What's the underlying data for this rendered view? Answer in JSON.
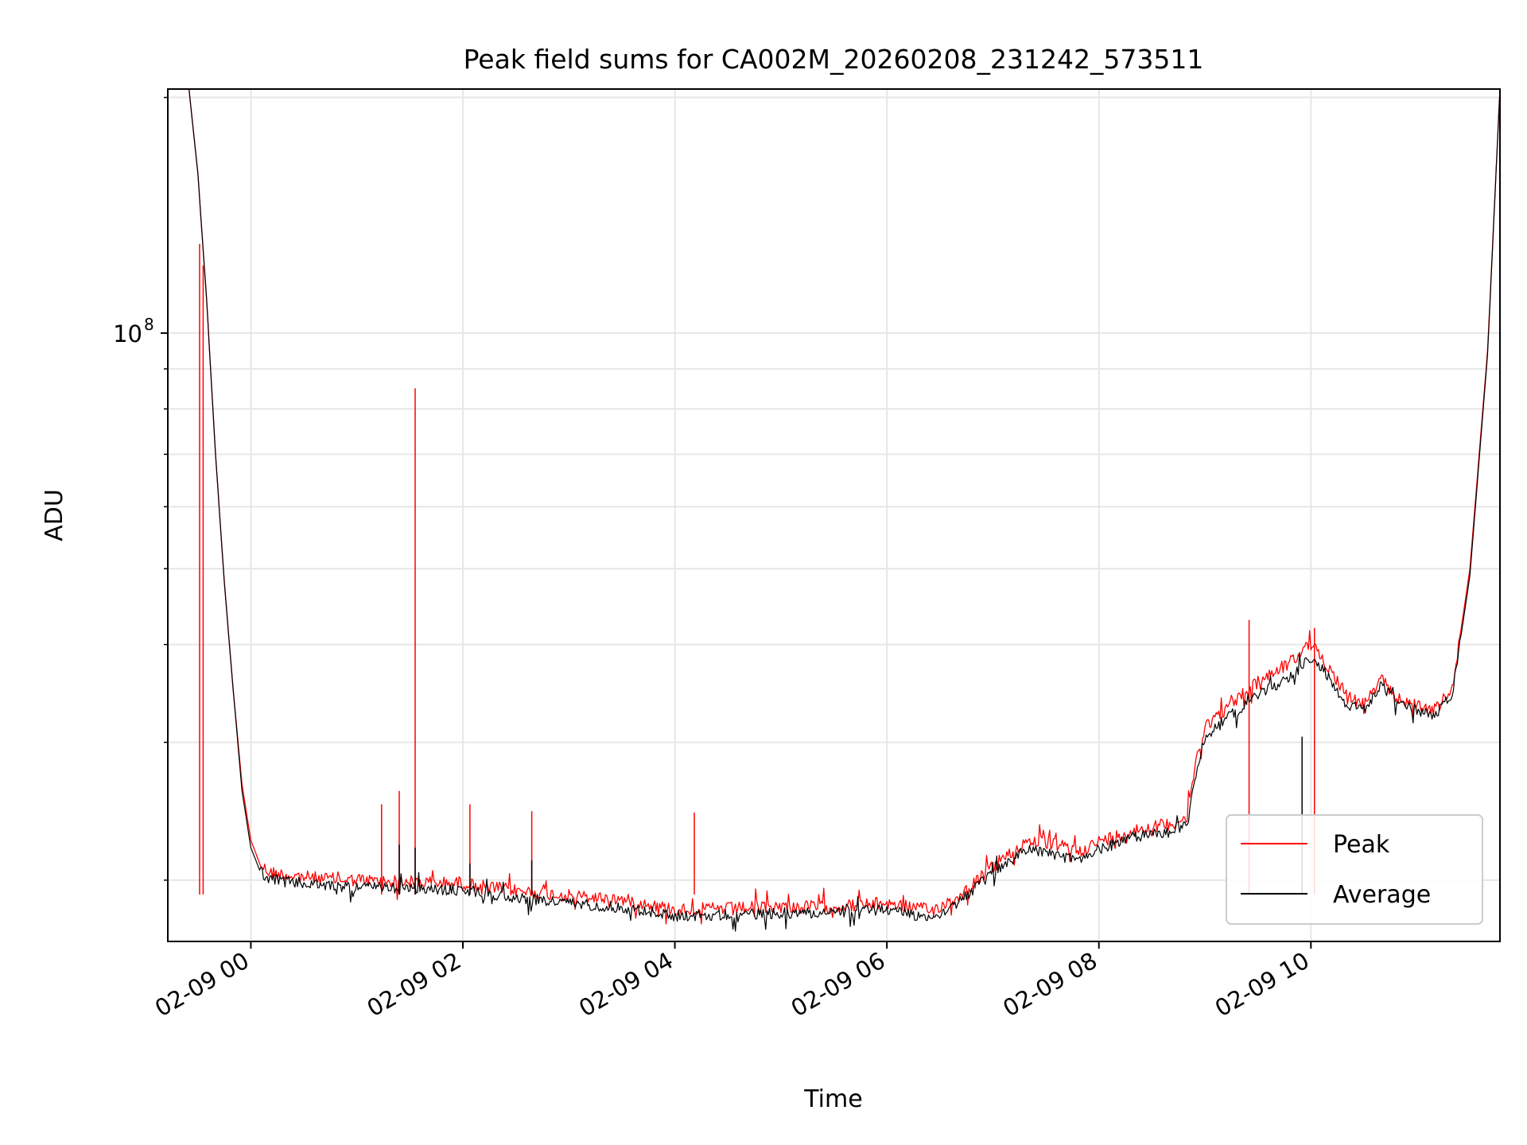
{
  "chart_data": {
    "type": "line",
    "title": "Peak field sums for CA002M_20260208_231242_573511",
    "xlabel": "Time",
    "ylabel": "ADU",
    "yscale": "log",
    "grid": true,
    "legend_position": "lower-right",
    "x_range": [
      "2026-02-08 23:13",
      "2026-02-09 11:47"
    ],
    "y_range": [
      16700000,
      205000000
    ],
    "x_ticks": [
      {
        "label": "02-09 00",
        "time": "2026-02-09 00:00"
      },
      {
        "label": "02-09 02",
        "time": "2026-02-09 02:00"
      },
      {
        "label": "02-09 04",
        "time": "2026-02-09 04:00"
      },
      {
        "label": "02-09 06",
        "time": "2026-02-09 06:00"
      },
      {
        "label": "02-09 08",
        "time": "2026-02-09 08:00"
      },
      {
        "label": "02-09 10",
        "time": "2026-02-09 10:00"
      }
    ],
    "y_major_ticks": [
      {
        "label_base": "10",
        "label_exp": "8",
        "value": 100000000
      }
    ],
    "y_minor_ticks": [
      20000000,
      30000000,
      40000000,
      50000000,
      60000000,
      70000000,
      80000000,
      90000000,
      200000000
    ],
    "series": [
      {
        "name": "Peak",
        "color": "#ff0000",
        "points": [
          [
            "2026-02-08 23:25",
            205000000
          ],
          [
            "2026-02-08 23:30",
            160000000
          ],
          [
            "2026-02-08 23:35",
            110000000
          ],
          [
            "2026-02-08 23:40",
            70000000
          ],
          [
            "2026-02-08 23:45",
            48000000
          ],
          [
            "2026-02-08 23:50",
            35000000
          ],
          [
            "2026-02-08 23:55",
            26500000
          ],
          [
            "2026-02-09 00:00",
            22500000
          ],
          [
            "2026-02-09 00:05",
            21000000
          ],
          [
            "2026-02-09 00:10",
            20500000
          ],
          [
            "2026-02-09 00:20",
            20300000
          ],
          [
            "2026-02-09 00:40",
            20100000
          ],
          [
            "2026-02-09 01:00",
            20000000
          ],
          [
            "2026-02-09 01:30",
            19900000
          ],
          [
            "2026-02-09 02:00",
            19800000
          ],
          [
            "2026-02-09 02:30",
            19400000
          ],
          [
            "2026-02-09 03:00",
            19100000
          ],
          [
            "2026-02-09 03:30",
            18900000
          ],
          [
            "2026-02-09 04:00",
            18350000
          ],
          [
            "2026-02-09 04:30",
            18400000
          ],
          [
            "2026-02-09 05:00",
            18500000
          ],
          [
            "2026-02-09 05:30",
            18500000
          ],
          [
            "2026-02-09 06:00",
            18700000
          ],
          [
            "2026-02-09 06:25",
            18300000
          ],
          [
            "2026-02-09 06:40",
            19000000
          ],
          [
            "2026-02-09 07:00",
            20800000
          ],
          [
            "2026-02-09 07:20",
            22500000
          ],
          [
            "2026-02-09 07:35",
            22200000
          ],
          [
            "2026-02-09 07:50",
            21800000
          ],
          [
            "2026-02-09 08:00",
            22400000
          ],
          [
            "2026-02-09 08:20",
            23200000
          ],
          [
            "2026-02-09 08:40",
            23600000
          ],
          [
            "2026-02-09 08:50",
            24000000
          ],
          [
            "2026-02-09 08:55",
            28500000
          ],
          [
            "2026-02-09 09:00",
            31500000
          ],
          [
            "2026-02-09 09:15",
            33500000
          ],
          [
            "2026-02-09 09:30",
            36000000
          ],
          [
            "2026-02-09 09:45",
            37500000
          ],
          [
            "2026-02-09 10:00",
            40000000
          ],
          [
            "2026-02-09 10:10",
            37500000
          ],
          [
            "2026-02-09 10:20",
            34500000
          ],
          [
            "2026-02-09 10:30",
            33500000
          ],
          [
            "2026-02-09 10:40",
            36000000
          ],
          [
            "2026-02-09 10:50",
            34000000
          ],
          [
            "2026-02-09 11:00",
            33500000
          ],
          [
            "2026-02-09 11:10",
            33000000
          ],
          [
            "2026-02-09 11:20",
            35000000
          ],
          [
            "2026-02-09 11:30",
            50000000
          ],
          [
            "2026-02-09 11:40",
            95000000
          ],
          [
            "2026-02-09 11:47",
            205000000
          ]
        ],
        "spikes": [
          [
            "2026-02-08 23:31",
            130000000
          ],
          [
            "2026-02-08 23:33",
            122000000
          ],
          [
            "2026-02-09 01:14",
            25000000
          ],
          [
            "2026-02-09 01:24",
            26000000
          ],
          [
            "2026-02-09 01:33",
            85000000
          ],
          [
            "2026-02-09 02:04",
            25000000
          ],
          [
            "2026-02-09 02:39",
            24500000
          ],
          [
            "2026-02-09 04:11",
            24400000
          ],
          [
            "2026-02-09 09:25",
            43000000
          ],
          [
            "2026-02-09 10:02",
            42000000
          ]
        ]
      },
      {
        "name": "Average",
        "color": "#000000",
        "points": [
          [
            "2026-02-08 23:25",
            205000000
          ],
          [
            "2026-02-08 23:30",
            160000000
          ],
          [
            "2026-02-08 23:35",
            110000000
          ],
          [
            "2026-02-08 23:40",
            70000000
          ],
          [
            "2026-02-08 23:45",
            48000000
          ],
          [
            "2026-02-08 23:50",
            35000000
          ],
          [
            "2026-02-08 23:55",
            26000000
          ],
          [
            "2026-02-09 00:00",
            22000000
          ],
          [
            "2026-02-09 00:05",
            20600000
          ],
          [
            "2026-02-09 00:10",
            20100000
          ],
          [
            "2026-02-09 00:20",
            19900000
          ],
          [
            "2026-02-09 00:40",
            19700000
          ],
          [
            "2026-02-09 01:00",
            19600000
          ],
          [
            "2026-02-09 01:30",
            19500000
          ],
          [
            "2026-02-09 02:00",
            19400000
          ],
          [
            "2026-02-09 02:30",
            19000000
          ],
          [
            "2026-02-09 03:00",
            18700000
          ],
          [
            "2026-02-09 03:30",
            18450000
          ],
          [
            "2026-02-09 04:00",
            18000000
          ],
          [
            "2026-02-09 04:30",
            18050000
          ],
          [
            "2026-02-09 05:00",
            18150000
          ],
          [
            "2026-02-09 05:30",
            18200000
          ],
          [
            "2026-02-09 06:00",
            18350000
          ],
          [
            "2026-02-09 06:25",
            17900000
          ],
          [
            "2026-02-09 06:40",
            18700000
          ],
          [
            "2026-02-09 07:00",
            20400000
          ],
          [
            "2026-02-09 07:20",
            22000000
          ],
          [
            "2026-02-09 07:35",
            21500000
          ],
          [
            "2026-02-09 07:50",
            21200000
          ],
          [
            "2026-02-09 08:00",
            21900000
          ],
          [
            "2026-02-09 08:20",
            22700000
          ],
          [
            "2026-02-09 08:40",
            23100000
          ],
          [
            "2026-02-09 08:50",
            23500000
          ],
          [
            "2026-02-09 08:55",
            27500000
          ],
          [
            "2026-02-09 09:00",
            30500000
          ],
          [
            "2026-02-09 09:15",
            32500000
          ],
          [
            "2026-02-09 09:30",
            34500000
          ],
          [
            "2026-02-09 09:45",
            36000000
          ],
          [
            "2026-02-09 10:00",
            38500000
          ],
          [
            "2026-02-09 10:10",
            36500000
          ],
          [
            "2026-02-09 10:20",
            33500000
          ],
          [
            "2026-02-09 10:30",
            33000000
          ],
          [
            "2026-02-09 10:40",
            35500000
          ],
          [
            "2026-02-09 10:50",
            33500000
          ],
          [
            "2026-02-09 11:00",
            33000000
          ],
          [
            "2026-02-09 11:10",
            32500000
          ],
          [
            "2026-02-09 11:20",
            34500000
          ],
          [
            "2026-02-09 11:30",
            49000000
          ],
          [
            "2026-02-09 11:40",
            94000000
          ],
          [
            "2026-02-09 11:47",
            205000000
          ]
        ],
        "spikes": [
          [
            "2026-02-09 01:24",
            22200000
          ],
          [
            "2026-02-09 01:33",
            22000000
          ],
          [
            "2026-02-09 02:04",
            21000000
          ],
          [
            "2026-02-09 02:39",
            21200000
          ],
          [
            "2026-02-09 09:55",
            30500000
          ]
        ]
      }
    ]
  }
}
